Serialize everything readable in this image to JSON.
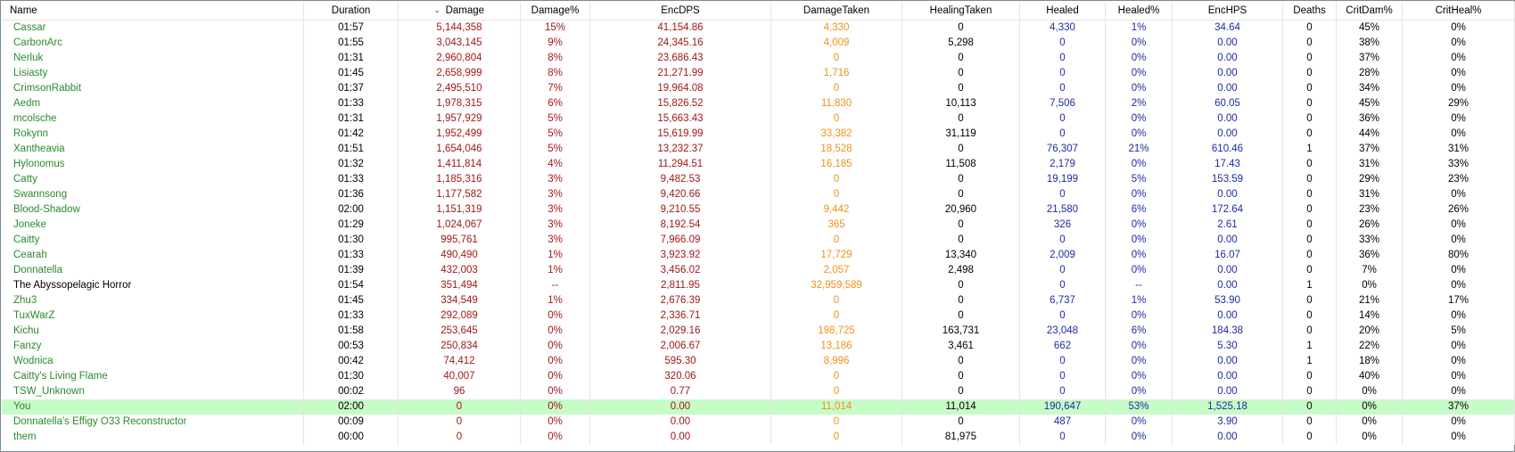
{
  "colors": {
    "name": "#2b8a2b",
    "name_boss": "#000000",
    "damage": "#a01818",
    "taken": "#f0901a",
    "neutral": "#000000",
    "heal": "#1c2ca0",
    "selected_bg": "#c7fbc7"
  },
  "columns": [
    {
      "key": "name",
      "label": "Name",
      "color": "name"
    },
    {
      "key": "duration",
      "label": "Duration",
      "color": "neutral"
    },
    {
      "key": "damage",
      "label": "Damage",
      "color": "damage",
      "sorted": true
    },
    {
      "key": "damage_pct",
      "label": "Damage%",
      "color": "damage"
    },
    {
      "key": "encdps",
      "label": "EncDPS",
      "color": "damage"
    },
    {
      "key": "damage_taken",
      "label": "DamageTaken",
      "color": "taken"
    },
    {
      "key": "healing_taken",
      "label": "HealingTaken",
      "color": "neutral"
    },
    {
      "key": "healed",
      "label": "Healed",
      "color": "heal"
    },
    {
      "key": "healed_pct",
      "label": "Healed%",
      "color": "heal"
    },
    {
      "key": "enchps",
      "label": "EncHPS",
      "color": "heal"
    },
    {
      "key": "deaths",
      "label": "Deaths",
      "color": "neutral"
    },
    {
      "key": "critdam_pct",
      "label": "CritDam%",
      "color": "neutral"
    },
    {
      "key": "critheal_pct",
      "label": "CritHeal%",
      "color": "neutral"
    }
  ],
  "rows": [
    [
      "Cassar",
      "01:57",
      "5,144,358",
      "15%",
      "41,154.86",
      "4,330",
      "0",
      "4,330",
      "1%",
      "34.64",
      "0",
      "45%",
      "0%"
    ],
    [
      "CarbonArc",
      "01:55",
      "3,043,145",
      "9%",
      "24,345.16",
      "4,009",
      "5,298",
      "0",
      "0%",
      "0.00",
      "0",
      "38%",
      "0%"
    ],
    [
      "Nerluk",
      "01:31",
      "2,960,804",
      "8%",
      "23,686.43",
      "0",
      "0",
      "0",
      "0%",
      "0.00",
      "0",
      "37%",
      "0%"
    ],
    [
      "Lisiasty",
      "01:45",
      "2,658,999",
      "8%",
      "21,271.99",
      "1,716",
      "0",
      "0",
      "0%",
      "0.00",
      "0",
      "28%",
      "0%"
    ],
    [
      "CrimsonRabbit",
      "01:37",
      "2,495,510",
      "7%",
      "19,964.08",
      "0",
      "0",
      "0",
      "0%",
      "0.00",
      "0",
      "34%",
      "0%"
    ],
    [
      "Aedm",
      "01:33",
      "1,978,315",
      "6%",
      "15,826.52",
      "11,830",
      "10,113",
      "7,506",
      "2%",
      "60.05",
      "0",
      "45%",
      "29%"
    ],
    [
      "mcolsche",
      "01:31",
      "1,957,929",
      "5%",
      "15,663.43",
      "0",
      "0",
      "0",
      "0%",
      "0.00",
      "0",
      "36%",
      "0%"
    ],
    [
      "Rokynn",
      "01:42",
      "1,952,499",
      "5%",
      "15,619.99",
      "33,382",
      "31,119",
      "0",
      "0%",
      "0.00",
      "0",
      "44%",
      "0%"
    ],
    [
      "Xantheavia",
      "01:51",
      "1,654,046",
      "5%",
      "13,232.37",
      "18,528",
      "0",
      "76,307",
      "21%",
      "610.46",
      "1",
      "37%",
      "31%"
    ],
    [
      "Hylonomus",
      "01:32",
      "1,411,814",
      "4%",
      "11,294.51",
      "16,185",
      "11,508",
      "2,179",
      "0%",
      "17.43",
      "0",
      "31%",
      "33%"
    ],
    [
      "Catty",
      "01:33",
      "1,185,316",
      "3%",
      "9,482.53",
      "0",
      "0",
      "19,199",
      "5%",
      "153.59",
      "0",
      "29%",
      "23%"
    ],
    [
      "Swannsong",
      "01:36",
      "1,177,582",
      "3%",
      "9,420.66",
      "0",
      "0",
      "0",
      "0%",
      "0.00",
      "0",
      "31%",
      "0%"
    ],
    [
      "Blood-Shadow",
      "02:00",
      "1,151,319",
      "3%",
      "9,210.55",
      "9,442",
      "20,960",
      "21,580",
      "6%",
      "172.64",
      "0",
      "23%",
      "26%"
    ],
    [
      "Joneke",
      "01:29",
      "1,024,067",
      "3%",
      "8,192.54",
      "365",
      "0",
      "326",
      "0%",
      "2.61",
      "0",
      "26%",
      "0%"
    ],
    [
      "Caitty",
      "01:30",
      "995,761",
      "3%",
      "7,966.09",
      "0",
      "0",
      "0",
      "0%",
      "0.00",
      "0",
      "33%",
      "0%"
    ],
    [
      "Cearah",
      "01:33",
      "490,490",
      "1%",
      "3,923.92",
      "17,729",
      "13,340",
      "2,009",
      "0%",
      "16.07",
      "0",
      "36%",
      "80%"
    ],
    [
      "Donnatella",
      "01:39",
      "432,003",
      "1%",
      "3,456.02",
      "2,057",
      "2,498",
      "0",
      "0%",
      "0.00",
      "0",
      "7%",
      "0%"
    ],
    [
      "The Abyssopelagic Horror",
      "01:54",
      "351,494",
      "--",
      "2,811.95",
      "32,959,589",
      "0",
      "0",
      "--",
      "0.00",
      "1",
      "0%",
      "0%"
    ],
    [
      "Zhu3",
      "01:45",
      "334,549",
      "1%",
      "2,676.39",
      "0",
      "0",
      "6,737",
      "1%",
      "53.90",
      "0",
      "21%",
      "17%"
    ],
    [
      "TuxWarZ",
      "01:33",
      "292,089",
      "0%",
      "2,336.71",
      "0",
      "0",
      "0",
      "0%",
      "0.00",
      "0",
      "14%",
      "0%"
    ],
    [
      "Kichu",
      "01:58",
      "253,645",
      "0%",
      "2,029.16",
      "198,725",
      "163,731",
      "23,048",
      "6%",
      "184.38",
      "0",
      "20%",
      "5%"
    ],
    [
      "Fanzy",
      "00:53",
      "250,834",
      "0%",
      "2,006.67",
      "13,186",
      "3,461",
      "662",
      "0%",
      "5.30",
      "1",
      "22%",
      "0%"
    ],
    [
      "Wodnica",
      "00:42",
      "74,412",
      "0%",
      "595.30",
      "8,996",
      "0",
      "0",
      "0%",
      "0.00",
      "1",
      "18%",
      "0%"
    ],
    [
      "Caitty's Living Flame",
      "01:30",
      "40,007",
      "0%",
      "320.06",
      "0",
      "0",
      "0",
      "0%",
      "0.00",
      "0",
      "40%",
      "0%"
    ],
    [
      "TSW_Unknown",
      "00:02",
      "96",
      "0%",
      "0.77",
      "0",
      "0",
      "0",
      "0%",
      "0.00",
      "0",
      "0%",
      "0%"
    ],
    [
      "You",
      "02:00",
      "0",
      "0%",
      "0.00",
      "11,014",
      "11,014",
      "190,647",
      "53%",
      "1,525.18",
      "0",
      "0%",
      "37%"
    ],
    [
      "Donnatella's Effigy O33 Reconstructor",
      "00:09",
      "0",
      "0%",
      "0.00",
      "0",
      "0",
      "487",
      "0%",
      "3.90",
      "0",
      "0%",
      "0%"
    ],
    [
      "them",
      "00:00",
      "0",
      "0%",
      "0.00",
      "0",
      "81,975",
      "0",
      "0%",
      "0.00",
      "0",
      "0%",
      "0%"
    ]
  ],
  "selected_row": 25,
  "boss_row": 17
}
